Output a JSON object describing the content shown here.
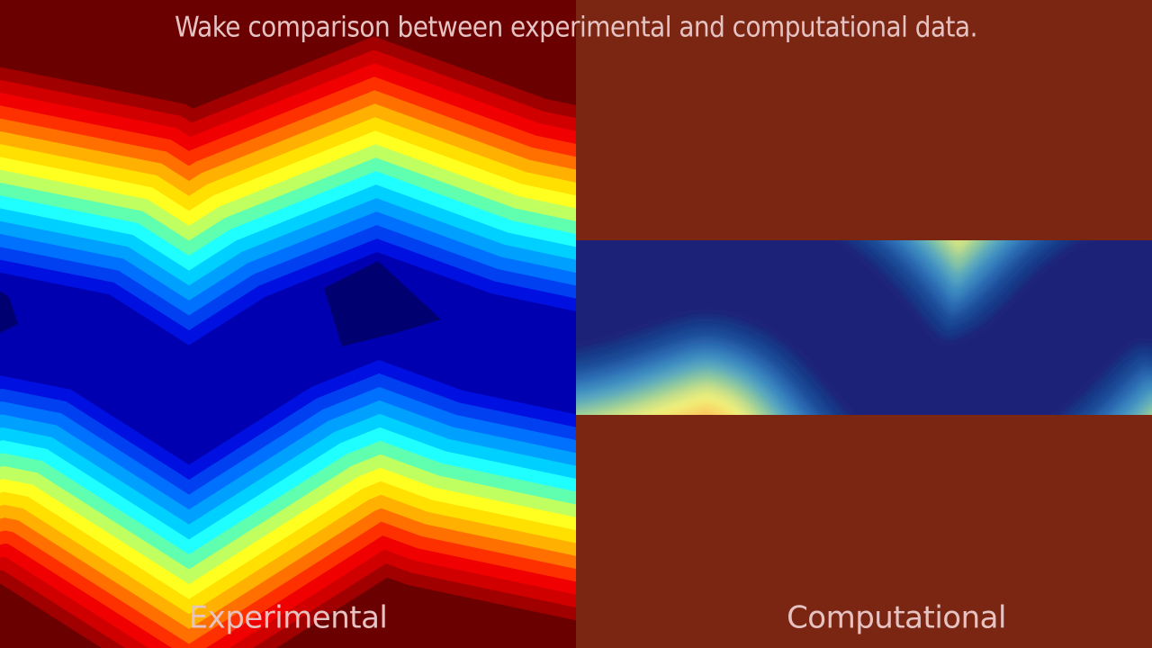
{
  "title": "Wake comparison between experimental and computational data.",
  "panels": [
    {
      "label": "Experimental"
    },
    {
      "label": "Computational"
    }
  ]
}
